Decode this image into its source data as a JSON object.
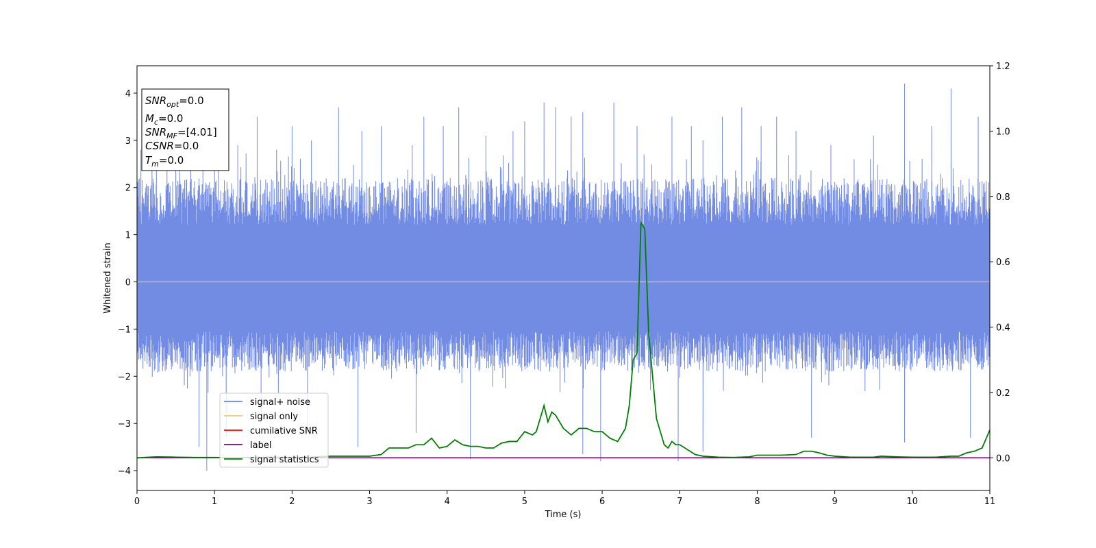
{
  "chart_data": {
    "type": "line",
    "xlabel": "Time (s)",
    "ylabel": "Whitened strain",
    "xlim": [
      0,
      11
    ],
    "ylim": [
      -4.42,
      4.58
    ],
    "y2lim": [
      -0.1,
      1.2
    ],
    "xticks": [
      "0",
      "1",
      "2",
      "3",
      "4",
      "5",
      "6",
      "7",
      "8",
      "9",
      "10",
      "11"
    ],
    "yticks": [
      "4",
      "3",
      "2",
      "1",
      "0",
      "−1",
      "−2",
      "−3",
      "−4"
    ],
    "y2ticks": [
      "1.2",
      "1.0",
      "0.8",
      "0.6",
      "0.4",
      "0.2",
      "0.0"
    ],
    "grid": false,
    "legend": {
      "position": "lower-left",
      "entries": [
        {
          "label": "signal+ noise",
          "color": "#6b86e2"
        },
        {
          "label": "signal only",
          "color": "#f8c46a"
        },
        {
          "label": "cumilative SNR",
          "color": "#ff0000"
        },
        {
          "label": "label",
          "color": "#800080"
        },
        {
          "label": "signal statistics",
          "color": "#008000"
        }
      ]
    },
    "info_box": {
      "snr_opt": {
        "main": "SNR",
        "sub": "opt",
        "value": "=0.0"
      },
      "mc": {
        "main": "M",
        "sub": "c",
        "value": "=0.0"
      },
      "snr_mf": {
        "main": "SNR",
        "sub": "MF",
        "value": "=[4.01]"
      },
      "csnr": {
        "main": "CSNR",
        "value": "=0.0"
      },
      "tm": {
        "main": "T",
        "sub": "m",
        "value": "=0.0"
      }
    },
    "series": [
      {
        "name": "signal+ noise",
        "axis": "left",
        "color": "#6b86e2",
        "noise_envelope": {
          "typical_max": 2.2,
          "typical_min": -1.9
        },
        "spikes": [
          [
            0.05,
            2.8
          ],
          [
            0.25,
            3.0
          ],
          [
            0.5,
            3.4
          ],
          [
            0.55,
            2.7
          ],
          [
            0.85,
            2.5
          ],
          [
            0.9,
            -4.0
          ],
          [
            1.05,
            3.1
          ],
          [
            1.3,
            2.9
          ],
          [
            1.55,
            3.5
          ],
          [
            1.8,
            2.8
          ],
          [
            2.0,
            3.3
          ],
          [
            2.25,
            3.0
          ],
          [
            2.6,
            3.7
          ],
          [
            2.9,
            3.2
          ],
          [
            3.15,
            3.3
          ],
          [
            3.55,
            2.9
          ],
          [
            3.7,
            3.5
          ],
          [
            3.95,
            3.3
          ],
          [
            4.15,
            3.7
          ],
          [
            4.5,
            3.1
          ],
          [
            4.85,
            3.2
          ],
          [
            5.0,
            3.4
          ],
          [
            5.25,
            3.8
          ],
          [
            5.4,
            3.7
          ],
          [
            5.6,
            3.5
          ],
          [
            5.75,
            3.6
          ],
          [
            6.15,
            3.8
          ],
          [
            6.45,
            3.3
          ],
          [
            6.9,
            3.5
          ],
          [
            7.15,
            3.3
          ],
          [
            7.3,
            3.0
          ],
          [
            7.55,
            3.5
          ],
          [
            7.8,
            3.7
          ],
          [
            8.05,
            3.3
          ],
          [
            8.25,
            3.5
          ],
          [
            8.5,
            3.2
          ],
          [
            8.95,
            2.9
          ],
          [
            9.25,
            2.6
          ],
          [
            9.5,
            3.1
          ],
          [
            9.9,
            4.2
          ],
          [
            10.25,
            3.3
          ],
          [
            10.5,
            4.1
          ],
          [
            10.85,
            3.5
          ],
          [
            0.8,
            -3.5
          ],
          [
            1.6,
            -3.0
          ],
          [
            2.85,
            -3.5
          ],
          [
            3.6,
            -3.2
          ],
          [
            4.3,
            -3.75
          ],
          [
            5.75,
            -3.65
          ],
          [
            5.98,
            -3.8
          ],
          [
            6.98,
            -3.8
          ],
          [
            7.3,
            -3.6
          ],
          [
            8.7,
            -3.3
          ],
          [
            9.9,
            -3.4
          ],
          [
            10.75,
            -3.3
          ],
          [
            2.2,
            -3.2
          ],
          [
            1.15,
            -3.3
          ]
        ]
      },
      {
        "name": "signal only",
        "axis": "left",
        "color": "#f8c46a",
        "x": [
          0,
          11
        ],
        "y": [
          0,
          0
        ]
      },
      {
        "name": "label",
        "axis": "right",
        "color": "#800080",
        "x": [
          0,
          11
        ],
        "y": [
          0,
          0
        ]
      },
      {
        "name": "signal statistics",
        "axis": "right",
        "color": "#008000",
        "x": [
          0,
          0.25,
          0.5,
          0.75,
          1.0,
          1.25,
          1.5,
          1.75,
          2.0,
          2.25,
          2.5,
          2.75,
          3.0,
          3.15,
          3.25,
          3.4,
          3.5,
          3.6,
          3.7,
          3.8,
          3.9,
          4.0,
          4.1,
          4.2,
          4.3,
          4.4,
          4.5,
          4.6,
          4.7,
          4.8,
          4.9,
          5.0,
          5.1,
          5.15,
          5.25,
          5.3,
          5.35,
          5.4,
          5.5,
          5.6,
          5.7,
          5.8,
          5.9,
          6.0,
          6.1,
          6.2,
          6.3,
          6.35,
          6.4,
          6.45,
          6.5,
          6.55,
          6.6,
          6.7,
          6.8,
          6.85,
          6.9,
          6.95,
          7.0,
          7.1,
          7.2,
          7.3,
          7.5,
          7.7,
          7.9,
          8.0,
          8.1,
          8.3,
          8.5,
          8.6,
          8.7,
          8.8,
          8.9,
          9.0,
          9.2,
          9.5,
          9.6,
          9.8,
          10.0,
          10.3,
          10.5,
          10.6,
          10.7,
          10.8,
          10.9,
          11.0
        ],
        "y": [
          0.0,
          0.003,
          0.002,
          0.001,
          0.001,
          0.0,
          0.001,
          0.002,
          0.001,
          0.002,
          0.005,
          0.005,
          0.005,
          0.01,
          0.03,
          0.03,
          0.03,
          0.04,
          0.04,
          0.06,
          0.03,
          0.035,
          0.055,
          0.04,
          0.035,
          0.035,
          0.03,
          0.03,
          0.045,
          0.05,
          0.05,
          0.08,
          0.07,
          0.08,
          0.16,
          0.11,
          0.14,
          0.13,
          0.09,
          0.07,
          0.09,
          0.09,
          0.08,
          0.08,
          0.06,
          0.05,
          0.09,
          0.16,
          0.3,
          0.32,
          0.72,
          0.7,
          0.38,
          0.12,
          0.04,
          0.03,
          0.05,
          0.04,
          0.04,
          0.025,
          0.01,
          0.005,
          0.002,
          0.001,
          0.003,
          0.008,
          0.008,
          0.008,
          0.01,
          0.02,
          0.02,
          0.015,
          0.008,
          0.005,
          0.002,
          0.002,
          0.005,
          0.003,
          0.002,
          0.002,
          0.005,
          0.005,
          0.015,
          0.02,
          0.03,
          0.085
        ]
      }
    ]
  }
}
